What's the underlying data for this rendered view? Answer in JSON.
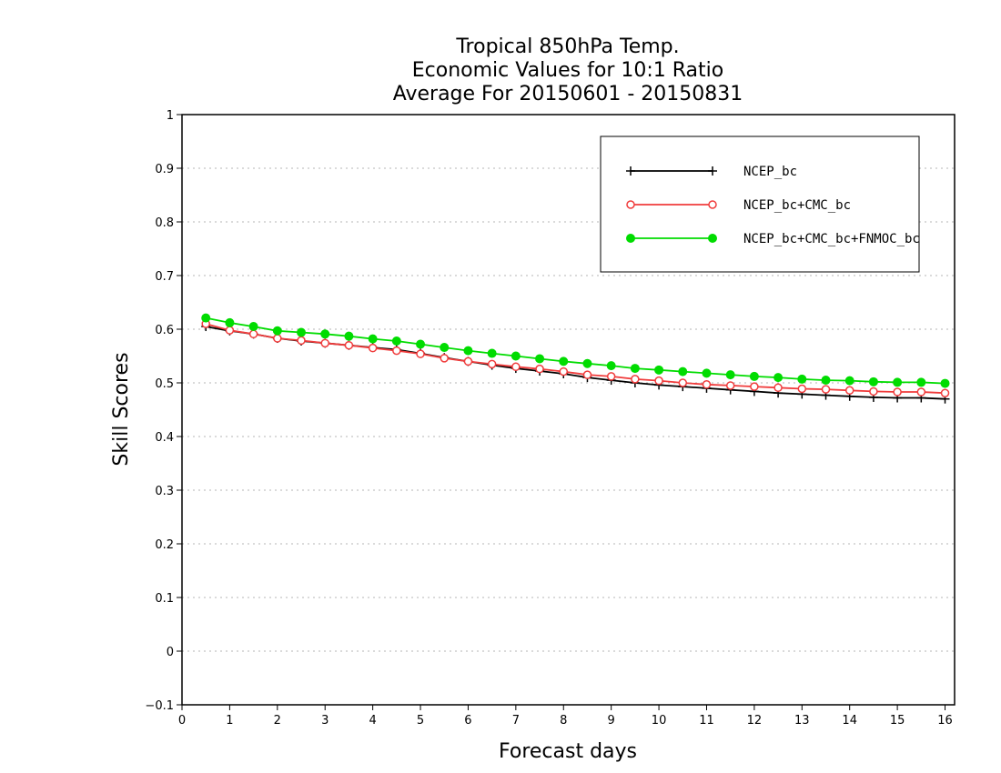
{
  "chart_data": {
    "type": "line",
    "title_lines": [
      "Tropical 850hPa Temp.",
      "Economic Values for 10:1 Ratio",
      "Average For 20150601 - 20150831"
    ],
    "xlabel": "Forecast days",
    "ylabel": "Skill Scores",
    "xlim": [
      0,
      16.2
    ],
    "ylim": [
      -0.1,
      1
    ],
    "x_ticks": [
      "0",
      "1",
      "2",
      "3",
      "4",
      "5",
      "6",
      "7",
      "8",
      "9",
      "10",
      "11",
      "12",
      "13",
      "14",
      "15",
      "16"
    ],
    "y_ticks": [
      "−0.1",
      "0",
      "0.1",
      "0.2",
      "0.3",
      "0.4",
      "0.5",
      "0.6",
      "0.7",
      "0.8",
      "0.9",
      "1"
    ],
    "grid": "horizontal dotted",
    "legend_position": "top-right",
    "x": [
      0.5,
      1,
      1.5,
      2,
      2.5,
      3,
      3.5,
      4,
      4.5,
      5,
      5.5,
      6,
      6.5,
      7,
      7.5,
      8,
      8.5,
      9,
      9.5,
      10,
      10.5,
      11,
      11.5,
      12,
      12.5,
      13,
      13.5,
      14,
      14.5,
      15,
      15.5,
      16
    ],
    "series": [
      {
        "name": "NCEP_bc",
        "color": "#000000",
        "marker": "plus",
        "values": [
          0.605,
          0.597,
          0.591,
          0.583,
          0.578,
          0.574,
          0.57,
          0.566,
          0.562,
          0.555,
          0.547,
          0.54,
          0.533,
          0.527,
          0.522,
          0.517,
          0.51,
          0.505,
          0.5,
          0.496,
          0.493,
          0.49,
          0.487,
          0.484,
          0.481,
          0.479,
          0.477,
          0.475,
          0.473,
          0.472,
          0.472,
          0.47
        ]
      },
      {
        "name": "NCEP_bc+CMC_bc",
        "color": "#f03c3c",
        "marker": "open-circle",
        "values": [
          0.61,
          0.598,
          0.591,
          0.583,
          0.579,
          0.574,
          0.57,
          0.565,
          0.56,
          0.554,
          0.546,
          0.54,
          0.535,
          0.53,
          0.526,
          0.521,
          0.515,
          0.512,
          0.507,
          0.504,
          0.5,
          0.497,
          0.495,
          0.493,
          0.491,
          0.489,
          0.488,
          0.486,
          0.484,
          0.483,
          0.483,
          0.481
        ]
      },
      {
        "name": "NCEP_bc+CMC_bc+FNMOC_bc",
        "color": "#00dc00",
        "marker": "filled-circle",
        "values": [
          0.621,
          0.612,
          0.605,
          0.597,
          0.594,
          0.591,
          0.587,
          0.582,
          0.578,
          0.572,
          0.566,
          0.56,
          0.555,
          0.55,
          0.545,
          0.54,
          0.536,
          0.532,
          0.527,
          0.524,
          0.521,
          0.518,
          0.515,
          0.512,
          0.51,
          0.507,
          0.505,
          0.504,
          0.502,
          0.501,
          0.501,
          0.499
        ]
      }
    ]
  }
}
